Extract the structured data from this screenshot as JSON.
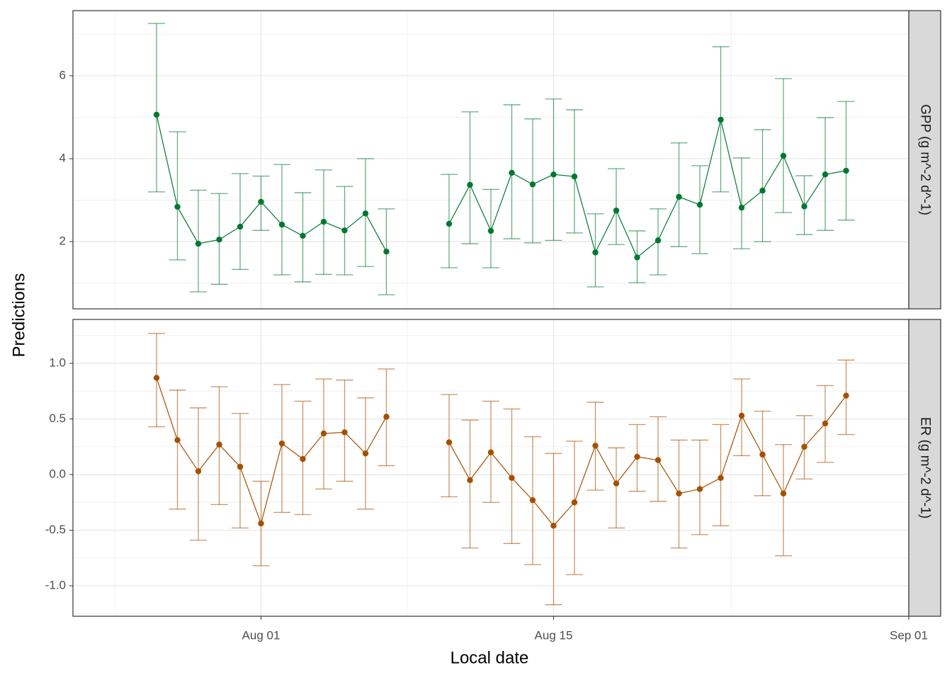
{
  "chart_data": {
    "type": "line",
    "xlabel": "Local date",
    "ylabel": "Predictions",
    "x": [
      "Jul 27",
      "Jul 28",
      "Jul 29",
      "Jul 30",
      "Jul 31",
      "Aug 01",
      "Aug 02",
      "Aug 03",
      "Aug 04",
      "Aug 05",
      "Aug 06",
      "Aug 07",
      "Aug 08",
      "Aug 09",
      "Aug 10",
      "Aug 11",
      "Aug 12",
      "Aug 13",
      "Aug 14",
      "Aug 15",
      "Aug 16",
      "Aug 17",
      "Aug 18",
      "Aug 19",
      "Aug 20",
      "Aug 21",
      "Aug 22",
      "Aug 23",
      "Aug 24",
      "Aug 25",
      "Aug 26",
      "Aug 27",
      "Aug 28",
      "Aug 29"
    ],
    "xlim": [
      "Jul 23",
      "Sep 01"
    ],
    "xticks": [
      "Aug 01",
      "Aug 15",
      "Sep 01"
    ],
    "grid": true,
    "panels": [
      {
        "strip": "GPP (g m^-2 d^-1)",
        "color": "#00782f",
        "values": [
          5.06,
          2.84,
          1.95,
          2.05,
          2.36,
          2.96,
          2.41,
          2.14,
          2.48,
          2.27,
          2.68,
          1.76,
          null,
          null,
          2.43,
          3.37,
          2.26,
          3.66,
          3.38,
          3.62,
          3.57,
          1.74,
          2.75,
          1.62,
          2.03,
          3.08,
          2.89,
          4.94,
          2.82,
          3.23,
          4.07,
          2.85,
          3.62,
          3.71
        ],
        "lower": [
          3.2,
          1.56,
          0.79,
          0.97,
          1.33,
          2.27,
          1.2,
          1.03,
          1.21,
          1.2,
          1.4,
          0.72,
          null,
          null,
          1.37,
          1.95,
          1.37,
          2.07,
          1.97,
          2.03,
          2.21,
          0.91,
          1.93,
          1.01,
          1.2,
          1.88,
          1.71,
          3.2,
          1.83,
          2.0,
          2.7,
          2.17,
          2.27,
          2.52
        ],
        "upper": [
          7.26,
          4.65,
          3.24,
          3.16,
          3.64,
          3.58,
          3.86,
          3.18,
          3.73,
          3.33,
          4.0,
          2.79,
          null,
          null,
          3.62,
          5.13,
          3.26,
          5.3,
          4.96,
          5.44,
          5.18,
          2.67,
          3.76,
          2.26,
          2.79,
          4.38,
          3.83,
          6.7,
          4.02,
          4.7,
          5.93,
          3.59,
          4.99,
          5.38
        ],
        "ylim": [
          0.38,
          7.57
        ],
        "yticks": [
          2,
          4,
          6
        ]
      },
      {
        "strip": "ER (g m^-2 d^-1)",
        "color": "#a64f00",
        "values": [
          0.87,
          0.31,
          0.03,
          0.27,
          0.07,
          -0.44,
          0.28,
          0.14,
          0.37,
          0.38,
          0.19,
          0.52,
          null,
          null,
          0.29,
          -0.05,
          0.2,
          -0.03,
          -0.23,
          -0.46,
          -0.25,
          0.26,
          -0.08,
          0.16,
          0.13,
          -0.17,
          -0.13,
          -0.03,
          0.53,
          0.18,
          -0.17,
          0.25,
          0.46,
          0.71
        ],
        "lower": [
          0.43,
          -0.31,
          -0.59,
          -0.27,
          -0.48,
          -0.82,
          -0.34,
          -0.36,
          -0.13,
          -0.06,
          -0.31,
          0.08,
          null,
          null,
          -0.2,
          -0.66,
          -0.25,
          -0.62,
          -0.81,
          -1.17,
          -0.9,
          -0.14,
          -0.48,
          -0.15,
          -0.24,
          -0.66,
          -0.54,
          -0.46,
          0.17,
          -0.19,
          -0.73,
          -0.04,
          0.11,
          0.36
        ],
        "upper": [
          1.27,
          0.76,
          0.6,
          0.79,
          0.55,
          -0.06,
          0.81,
          0.66,
          0.86,
          0.85,
          0.69,
          0.95,
          null,
          null,
          0.72,
          0.49,
          0.66,
          0.59,
          0.34,
          0.19,
          0.3,
          0.65,
          0.24,
          0.45,
          0.52,
          0.31,
          0.31,
          0.45,
          0.86,
          0.57,
          0.27,
          0.53,
          0.8,
          1.03
        ],
        "ylim": [
          -1.274,
          1.395
        ],
        "yticks": [
          {
            "value": -1,
            "label": "-1.0"
          },
          -0.5,
          {
            "value": 0,
            "label": "0.0"
          },
          0.5,
          {
            "value": 1,
            "label": "1.0"
          }
        ]
      }
    ]
  }
}
